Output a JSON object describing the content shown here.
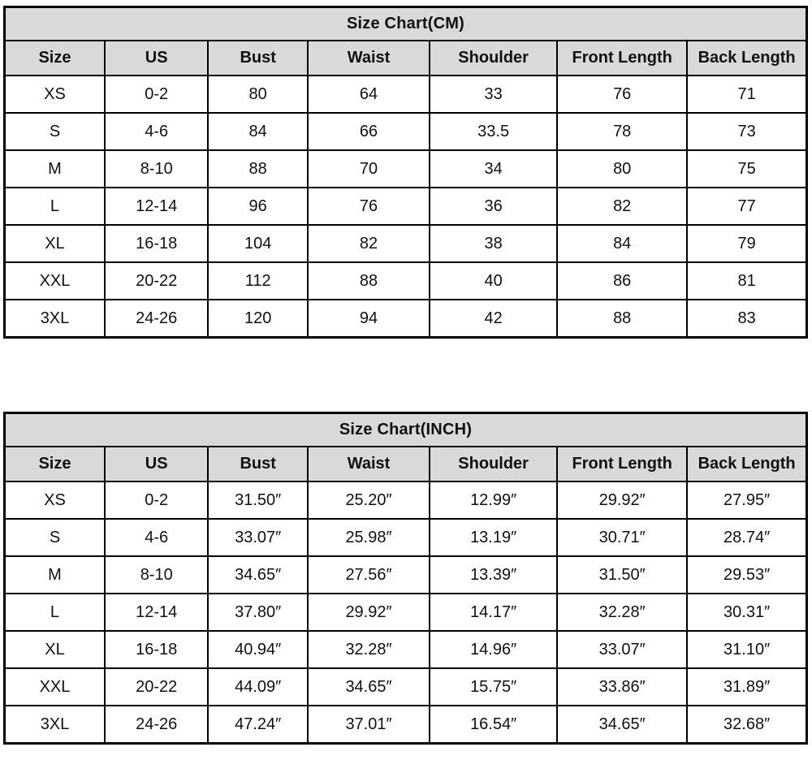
{
  "colors": {
    "header_background": "#d9d9d9",
    "border": "#000000",
    "text": "#111111",
    "page_background": "#ffffff"
  },
  "chart_data": [
    {
      "type": "table",
      "title": "Size Chart(CM)",
      "columns": [
        "Size",
        "US",
        "Bust",
        "Waist",
        "Shoulder",
        "Front Length",
        "Back Length"
      ],
      "rows": [
        [
          "XS",
          "0-2",
          "80",
          "64",
          "33",
          "76",
          "71"
        ],
        [
          "S",
          "4-6",
          "84",
          "66",
          "33.5",
          "78",
          "73"
        ],
        [
          "M",
          "8-10",
          "88",
          "70",
          "34",
          "80",
          "75"
        ],
        [
          "L",
          "12-14",
          "96",
          "76",
          "36",
          "82",
          "77"
        ],
        [
          "XL",
          "16-18",
          "104",
          "82",
          "38",
          "84",
          "79"
        ],
        [
          "XXL",
          "20-22",
          "112",
          "88",
          "40",
          "86",
          "81"
        ],
        [
          "3XL",
          "24-26",
          "120",
          "94",
          "42",
          "88",
          "83"
        ]
      ]
    },
    {
      "type": "table",
      "title": "Size Chart(INCH)",
      "columns": [
        "Size",
        "US",
        "Bust",
        "Waist",
        "Shoulder",
        "Front Length",
        "Back Length"
      ],
      "rows": [
        [
          "XS",
          "0-2",
          "31.50″",
          "25.20″",
          "12.99″",
          "29.92″",
          "27.95″"
        ],
        [
          "S",
          "4-6",
          "33.07″",
          "25.98″",
          "13.19″",
          "30.71″",
          "28.74″"
        ],
        [
          "M",
          "8-10",
          "34.65″",
          "27.56″",
          "13.39″",
          "31.50″",
          "29.53″"
        ],
        [
          "L",
          "12-14",
          "37.80″",
          "29.92″",
          "14.17″",
          "32.28″",
          "30.31″"
        ],
        [
          "XL",
          "16-18",
          "40.94″",
          "32.28″",
          "14.96″",
          "33.07″",
          "31.10″"
        ],
        [
          "XXL",
          "20-22",
          "44.09″",
          "34.65″",
          "15.75″",
          "33.86″",
          "31.89″"
        ],
        [
          "3XL",
          "24-26",
          "47.24″",
          "37.01″",
          "16.54″",
          "34.65″",
          "32.68″"
        ]
      ]
    }
  ]
}
